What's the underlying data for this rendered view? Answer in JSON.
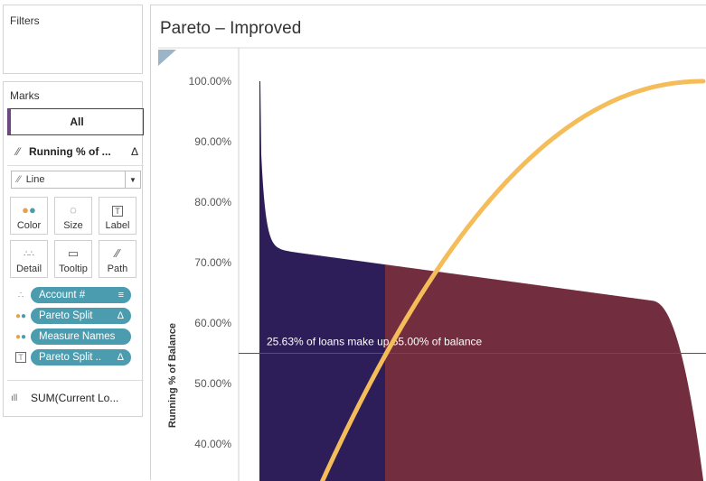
{
  "filters": {
    "title": "Filters"
  },
  "marks": {
    "title": "Marks",
    "all_label": "All",
    "running_label": "Running % of ...",
    "running_delta": "Δ",
    "mark_type": "Line",
    "cards": [
      {
        "label": "Color",
        "icon": "color-icon"
      },
      {
        "label": "Size",
        "icon": "size-icon"
      },
      {
        "label": "Label",
        "icon": "label-icon"
      },
      {
        "label": "Detail",
        "icon": "detail-icon"
      },
      {
        "label": "Tooltip",
        "icon": "tooltip-icon"
      },
      {
        "label": "Path",
        "icon": "path-icon"
      }
    ],
    "pills": [
      {
        "icon": "detail-icon",
        "label": "Account #",
        "suffix": "≡"
      },
      {
        "icon": "color-icon",
        "label": "Pareto Split",
        "suffix": "Δ"
      },
      {
        "icon": "color-icon",
        "label": "Measure Names",
        "suffix": ""
      },
      {
        "icon": "label-icon",
        "label": "Pareto Split ..",
        "suffix": "Δ"
      }
    ],
    "sum_label": "SUM(Current Lo..."
  },
  "view": {
    "title": "Pareto – Improved",
    "annotation": "25.63% of loans make up 55.00% of balance"
  },
  "colors": {
    "navy": "#2d1e5a",
    "maroon": "#722d3e",
    "line": "#f5bd5a",
    "pill": "#4b9cae"
  },
  "chart_data": {
    "type": "area",
    "ylabel": "Running % of Balance",
    "y_ticks": [
      "100.00%",
      "90.00%",
      "80.00%",
      "70.00%",
      "60.00%",
      "50.00%",
      "40.00%"
    ],
    "ylim_visible": [
      36,
      102
    ],
    "split_fraction": 0.2563,
    "split_y": 55.0,
    "series": [
      {
        "name": "Pareto Split (top)",
        "color": "#2d1e5a"
      },
      {
        "name": "Pareto Split (rest)",
        "color": "#722d3e"
      },
      {
        "name": "Running % of Balance",
        "color": "#f5bd5a"
      }
    ]
  }
}
